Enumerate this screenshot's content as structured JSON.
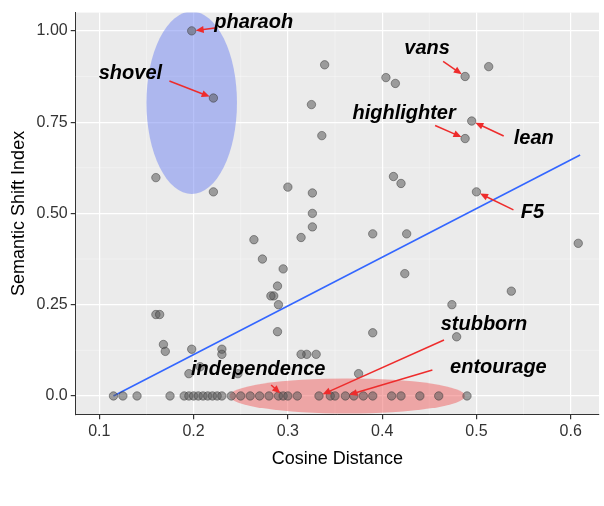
{
  "chart_data": {
    "type": "scatter",
    "x_label": "Cosine Distance",
    "y_label": "Semantic Shift Index",
    "x": [
      0.198,
      0.221,
      0.16,
      0.221,
      0.339,
      0.404,
      0.414,
      0.488,
      0.513,
      0.325,
      0.336,
      0.495,
      0.488,
      0.5,
      0.412,
      0.42,
      0.3,
      0.326,
      0.326,
      0.326,
      0.426,
      0.39,
      0.314,
      0.264,
      0.273,
      0.295,
      0.289,
      0.285,
      0.282,
      0.29,
      0.424,
      0.608,
      0.537,
      0.474,
      0.479,
      0.39,
      0.32,
      0.314,
      0.33,
      0.289,
      0.23,
      0.23,
      0.198,
      0.168,
      0.17,
      0.16,
      0.164,
      0.247,
      0.375,
      0.207,
      0.195,
      0.115,
      0.125,
      0.14,
      0.175,
      0.19,
      0.195,
      0.2,
      0.205,
      0.21,
      0.215,
      0.22,
      0.225,
      0.23,
      0.24,
      0.25,
      0.26,
      0.27,
      0.28,
      0.29,
      0.295,
      0.3,
      0.31,
      0.333,
      0.345,
      0.35,
      0.361,
      0.37,
      0.38,
      0.39,
      0.41,
      0.42,
      0.44,
      0.46,
      0.49
    ],
    "values": [
      1.0,
      0.816,
      0.598,
      0.559,
      0.907,
      0.872,
      0.856,
      0.875,
      0.902,
      0.798,
      0.713,
      0.753,
      0.705,
      0.559,
      0.601,
      0.582,
      0.572,
      0.556,
      0.5,
      0.463,
      0.444,
      0.444,
      0.434,
      0.428,
      0.375,
      0.348,
      0.301,
      0.274,
      0.274,
      0.25,
      0.335,
      0.418,
      0.287,
      0.25,
      0.162,
      0.173,
      0.114,
      0.114,
      0.114,
      0.176,
      0.128,
      0.114,
      0.128,
      0.141,
      0.122,
      0.223,
      0.223,
      0.061,
      0.061,
      0.08,
      0.061,
      0,
      0,
      0,
      0,
      0,
      0,
      0,
      0,
      0,
      0,
      0,
      0,
      0,
      0,
      0,
      0,
      0,
      0,
      0,
      0,
      0,
      0,
      0,
      0,
      0,
      0,
      0,
      0,
      0,
      0,
      0,
      0,
      0,
      0
    ],
    "color": "#595959",
    "marker": "circle",
    "trend_line": {
      "x": [
        0.115,
        0.61
      ],
      "values": [
        0,
        0.66
      ],
      "color": "#3366ff",
      "line_style": "solid"
    },
    "highlight_regions": [
      {
        "center": [
          0.198,
          0.803
        ],
        "radius": [
          0.048,
          0.25
        ],
        "color": "#6f84f2"
      },
      {
        "center": [
          0.363,
          0
        ],
        "radius": [
          0.125,
          0.048
        ],
        "color": "#f06060"
      }
    ],
    "annotations": [
      {
        "text": "pharaoh",
        "x": 0.198,
        "y": 1.0
      },
      {
        "text": "shovel",
        "x": 0.221,
        "y": 0.816
      },
      {
        "text": "vans",
        "x": 0.488,
        "y": 0.875
      },
      {
        "text": "highlighter",
        "x": 0.488,
        "y": 0.705
      },
      {
        "text": "lean",
        "x": 0.495,
        "y": 0.753
      },
      {
        "text": "F5",
        "x": 0.5,
        "y": 0.559
      },
      {
        "text": "independence",
        "x": 0.295,
        "y": 0
      },
      {
        "text": "stubborn",
        "x": 0.333,
        "y": 0
      },
      {
        "text": "entourage",
        "x": 0.361,
        "y": 0
      }
    ],
    "xlim": [
      0.075,
      0.63
    ],
    "xticks": [
      0.1,
      0.2,
      0.3,
      0.4,
      0.5,
      0.6
    ],
    "ylim": [
      -0.05,
      1.05
    ],
    "yticks": [
      {
        "value": 0,
        "label": "0.0"
      },
      0.25,
      {
        "value": 0.5,
        "label": "0.50"
      },
      0.75,
      {
        "value": 1,
        "label": "1.00"
      }
    ],
    "grid": true
  }
}
